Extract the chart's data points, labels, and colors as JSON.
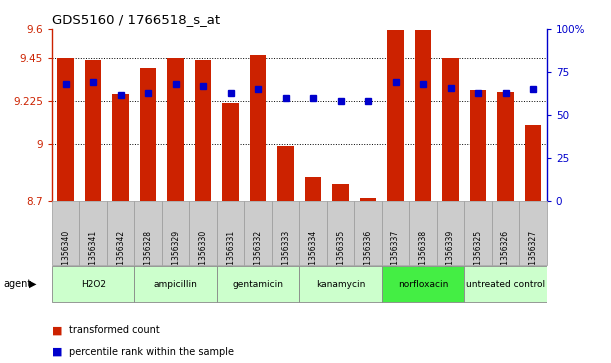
{
  "title": "GDS5160 / 1766518_s_at",
  "samples": [
    "GSM1356340",
    "GSM1356341",
    "GSM1356342",
    "GSM1356328",
    "GSM1356329",
    "GSM1356330",
    "GSM1356331",
    "GSM1356332",
    "GSM1356333",
    "GSM1356334",
    "GSM1356335",
    "GSM1356336",
    "GSM1356337",
    "GSM1356338",
    "GSM1356339",
    "GSM1356325",
    "GSM1356326",
    "GSM1356327"
  ],
  "transformed_count": [
    9.45,
    9.44,
    9.26,
    9.395,
    9.45,
    9.44,
    9.215,
    9.465,
    8.99,
    8.83,
    8.79,
    8.72,
    9.595,
    9.595,
    9.45,
    9.28,
    9.27,
    9.1
  ],
  "percentile_rank": [
    68,
    69,
    62,
    63,
    68,
    67,
    63,
    65,
    60,
    60,
    58,
    58,
    69,
    68,
    66,
    63,
    63,
    65
  ],
  "agents": [
    {
      "label": "H2O2",
      "start": 0,
      "end": 2,
      "color": "#ccffcc"
    },
    {
      "label": "ampicillin",
      "start": 3,
      "end": 5,
      "color": "#ccffcc"
    },
    {
      "label": "gentamicin",
      "start": 6,
      "end": 8,
      "color": "#ccffcc"
    },
    {
      "label": "kanamycin",
      "start": 9,
      "end": 11,
      "color": "#ccffcc"
    },
    {
      "label": "norfloxacin",
      "start": 12,
      "end": 14,
      "color": "#44ee44"
    },
    {
      "label": "untreated control",
      "start": 15,
      "end": 17,
      "color": "#ccffcc"
    }
  ],
  "ylim_left": [
    8.7,
    9.6
  ],
  "ylim_right": [
    0,
    100
  ],
  "yticks_left": [
    8.7,
    9.0,
    9.225,
    9.45,
    9.6
  ],
  "ytick_labels_left": [
    "8.7",
    "9",
    "9.225",
    "9.45",
    "9.6"
  ],
  "yticks_right": [
    0,
    25,
    50,
    75,
    100
  ],
  "ytick_labels_right": [
    "0",
    "25",
    "50",
    "75",
    "100%"
  ],
  "bar_color": "#cc2200",
  "dot_color": "#0000cc",
  "bar_width": 0.6,
  "background_color": "#ffffff",
  "legend_red": "transformed count",
  "legend_blue": "percentile rank within the sample"
}
